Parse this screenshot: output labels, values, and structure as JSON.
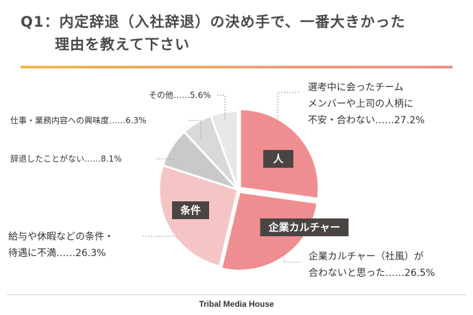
{
  "page": {
    "title_line1": "Q1：内定辞退（入社辞退）の決め手で、一番大きかった",
    "title_line2": "理由を教えて下さい",
    "footer": "Tribal Media House"
  },
  "chart_data": {
    "type": "pie",
    "title": "Q1：内定辞退（入社辞退）の決め手で、一番大きかった理由を教えて下さい",
    "unit": "%",
    "slices": [
      {
        "key": "hito",
        "category": "人",
        "label_lines": [
          "選考中に会ったチーム",
          "メンバーや上司の人柄に",
          "不安・合わない……27.2%"
        ],
        "value": 27.2,
        "color": "#ef8e90"
      },
      {
        "key": "culture",
        "category": "企業カルチャー",
        "label_lines": [
          "企業カルチャー（社風）が",
          "合わないと思った……26.5%"
        ],
        "value": 26.5,
        "color": "#ef8e90"
      },
      {
        "key": "joken",
        "category": "条件",
        "label_lines": [
          "給与や休暇などの条件・",
          "待遇に不満……26.3%"
        ],
        "value": 26.3,
        "color": "#f5c4c4"
      },
      {
        "key": "nai",
        "category": "",
        "label_lines": [
          "辞退したことがない……8.1%"
        ],
        "value": 8.1,
        "color": "#c9c9c9"
      },
      {
        "key": "shigoto",
        "category": "",
        "label_lines": [
          "仕事・業務内容への興味度……6.3%"
        ],
        "value": 6.3,
        "color": "#d9d9d9"
      },
      {
        "key": "other",
        "category": "",
        "label_lines": [
          "その他……5.6%"
        ],
        "value": 5.6,
        "color": "#e8e8e8"
      }
    ]
  }
}
